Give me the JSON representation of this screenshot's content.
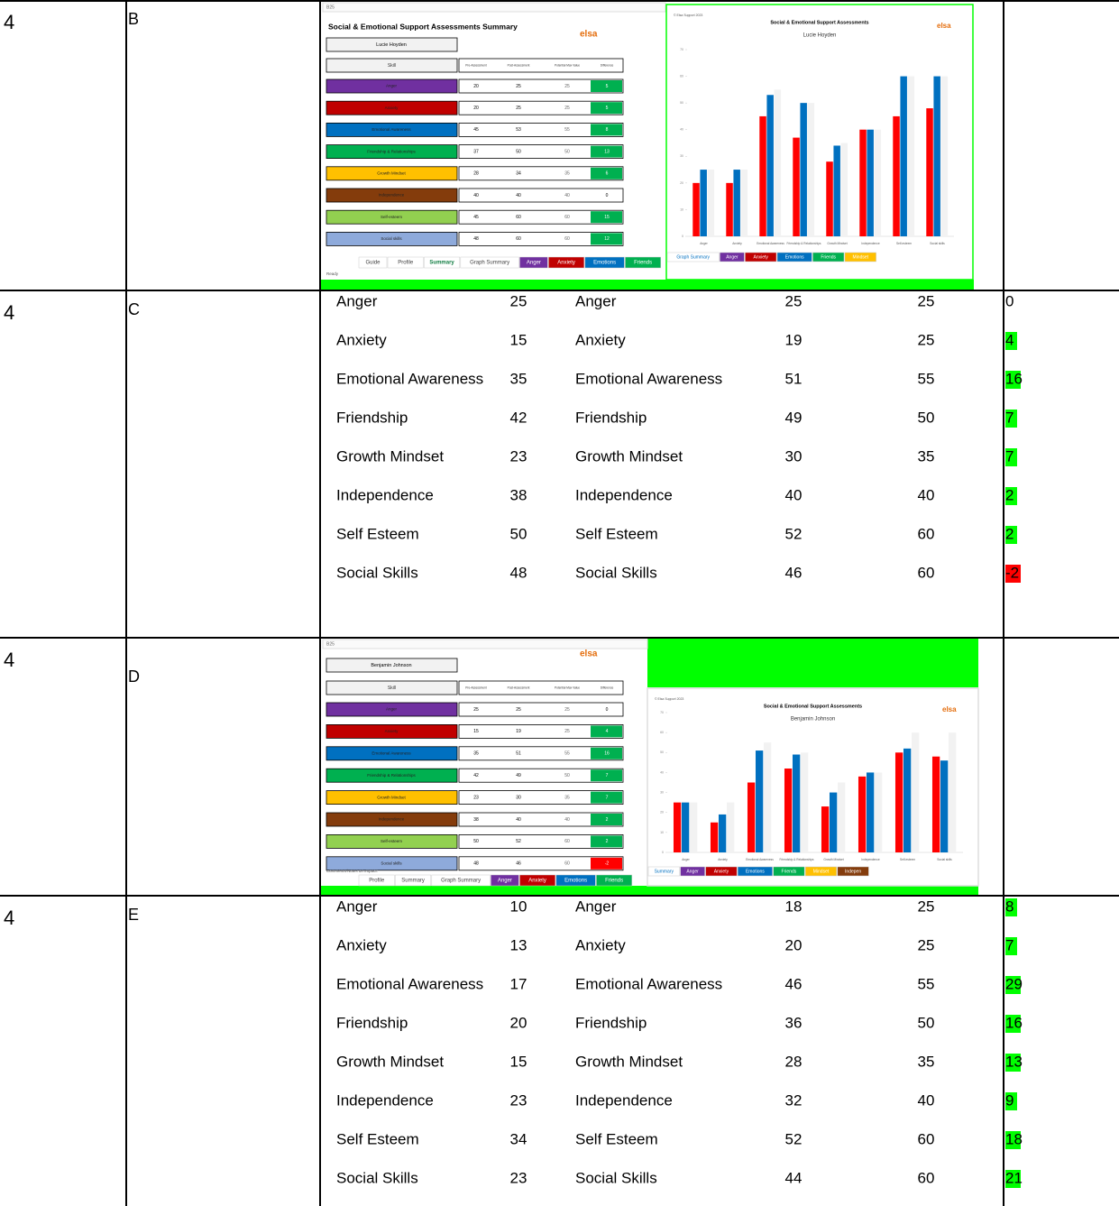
{
  "rows": [
    {
      "number": "4",
      "label": "B",
      "screenshot": {
        "cell_ref": "B25",
        "title": "Social & Emotional Support Assessments Summary",
        "logo": "elsa",
        "student": "Lucie Hoyden",
        "headers": [
          "Skill",
          "Pre-Assessment",
          "Post-Assessment",
          "Potential Max Value",
          "Difference"
        ],
        "skills": [
          "Anger",
          "Anxiety",
          "Emotional Awareness",
          "Friendship & Relationships",
          "Growth Mindset",
          "Independence",
          "Self-esteem",
          "Social skills"
        ],
        "skill_colors": [
          "#7030a0",
          "#c00000",
          "#0070c0",
          "#00b050",
          "#ffc000",
          "#843c0c",
          "#92d050",
          "#8eaadb"
        ],
        "pre": [
          20,
          20,
          45,
          37,
          28,
          40,
          45,
          48
        ],
        "post": [
          25,
          25,
          53,
          50,
          34,
          40,
          60,
          60
        ],
        "max": [
          25,
          25,
          55,
          50,
          35,
          40,
          60,
          60
        ],
        "diff": [
          5,
          5,
          8,
          13,
          6,
          0,
          15,
          12
        ],
        "tabs": [
          "Guide",
          "Profile",
          "Summary",
          "Graph Summary",
          "Anger",
          "Anxiety",
          "Emotions",
          "Friends"
        ],
        "tab_colors": [
          null,
          null,
          null,
          null,
          "#7030a0",
          "#c00000",
          "#0070c0",
          "#00b050"
        ],
        "status": "Ready",
        "chart": {
          "type": "bar",
          "copyright": "© Elsa Support 2023",
          "title": "Social & Emotional Support Assessments",
          "subtitle": "Lucie Hoyden",
          "logo": "elsa",
          "categories": [
            "Anger",
            "Anxiety",
            "Emotional Awareness",
            "Friendship & Relationships",
            "Growth Mindset",
            "Independence",
            "Self-esteem",
            "Social skills"
          ],
          "series": [
            {
              "color": "#ff0000",
              "values": [
                20,
                20,
                45,
                37,
                28,
                40,
                45,
                48
              ]
            },
            {
              "color": "#0070c0",
              "values": [
                25,
                25,
                53,
                50,
                34,
                40,
                60,
                60
              ]
            },
            {
              "color": "#f2f2f2",
              "values": [
                25,
                25,
                55,
                50,
                35,
                40,
                60,
                60
              ]
            }
          ],
          "ylim": [
            0,
            70
          ],
          "yticks": [
            0,
            10,
            20,
            30,
            40,
            50,
            60,
            70
          ],
          "tabs": [
            "Graph Summary",
            "Anger",
            "Anxiety",
            "Emotions",
            "Friends",
            "Mindset"
          ],
          "tab_colors": [
            null,
            "#7030a0",
            "#c00000",
            "#0070c0",
            "#00b050",
            "#ffc000"
          ]
        }
      }
    },
    {
      "number": "4",
      "label": "C",
      "scores": [
        [
          "Anger",
          25,
          "Anger",
          25,
          25,
          0
        ],
        [
          "Anxiety",
          15,
          "Anxiety",
          19,
          25,
          4
        ],
        [
          "Emotional Awareness",
          35,
          "Emotional Awareness",
          51,
          55,
          16
        ],
        [
          "Friendship",
          42,
          "Friendship",
          49,
          50,
          7
        ],
        [
          "Growth Mindset",
          23,
          "Growth Mindset",
          30,
          35,
          7
        ],
        [
          "Independence",
          38,
          "Independence",
          40,
          40,
          2
        ],
        [
          "Self Esteem",
          50,
          "Self Esteem",
          52,
          60,
          2
        ],
        [
          "Social Skills",
          48,
          "Social Skills",
          46,
          60,
          -2
        ]
      ]
    },
    {
      "number": "4",
      "label": "D",
      "screenshot": {
        "cell_ref": "B25",
        "logo": "elsa",
        "student": "Benjamin Johnson",
        "headers": [
          "Skill",
          "Pre-Assessment",
          "Post-Assessment",
          "Potential Max Value",
          "Difference"
        ],
        "skills": [
          "Anger",
          "Anxiety",
          "Emotional Awareness",
          "Friendship & Relationships",
          "Growth Mindset",
          "Independence",
          "Self-esteem",
          "Social skills"
        ],
        "skill_colors": [
          "#7030a0",
          "#c00000",
          "#0070c0",
          "#00b050",
          "#ffc000",
          "#843c0c",
          "#92d050",
          "#8eaadb"
        ],
        "pre": [
          25,
          15,
          35,
          42,
          23,
          38,
          50,
          48
        ],
        "post": [
          25,
          19,
          51,
          49,
          30,
          40,
          52,
          46
        ],
        "max": [
          25,
          25,
          55,
          50,
          35,
          40,
          60,
          60
        ],
        "diff": [
          0,
          4,
          16,
          7,
          7,
          2,
          2,
          -2
        ],
        "tabs": [
          "Profile",
          "Summary",
          "Graph Summary",
          "Anger",
          "Anxiety",
          "Emotions",
          "Friends"
        ],
        "tab_colors": [
          null,
          null,
          null,
          "#7030a0",
          "#c00000",
          "#0070c0",
          "#00b050"
        ],
        "status": "Comments/Notes on Impact:",
        "chart": {
          "type": "bar",
          "copyright": "© Elsa Support 2023",
          "title": "Social & Emotional Support Assessments",
          "subtitle": "Benjamin Johnson",
          "logo": "elsa",
          "categories": [
            "Anger",
            "Anxiety",
            "Emotional Awareness",
            "Friendship & Relationships",
            "Growth Mindset",
            "Independence",
            "Self-esteem",
            "Social skills"
          ],
          "series": [
            {
              "color": "#ff0000",
              "values": [
                25,
                15,
                35,
                42,
                23,
                38,
                50,
                48
              ]
            },
            {
              "color": "#0070c0",
              "values": [
                25,
                19,
                51,
                49,
                30,
                40,
                52,
                46
              ]
            },
            {
              "color": "#f2f2f2",
              "values": [
                25,
                25,
                55,
                50,
                35,
                40,
                60,
                60
              ]
            }
          ],
          "ylim": [
            0,
            70
          ],
          "yticks": [
            0,
            10,
            20,
            30,
            40,
            50,
            60,
            70
          ],
          "tabs": [
            "Summary",
            "Anger",
            "Anxiety",
            "Emotions",
            "Friends",
            "Mindset",
            "Indepen"
          ],
          "tab_colors": [
            null,
            "#7030a0",
            "#c00000",
            "#0070c0",
            "#00b050",
            "#ffc000",
            "#843c0c"
          ]
        }
      }
    },
    {
      "number": "4",
      "label": "E",
      "scores": [
        [
          "Anger",
          10,
          "Anger",
          18,
          25,
          8
        ],
        [
          "Anxiety",
          13,
          "Anxiety",
          20,
          25,
          7
        ],
        [
          "Emotional Awareness",
          17,
          "Emotional Awareness",
          46,
          55,
          29
        ],
        [
          "Friendship",
          20,
          "Friendship",
          36,
          50,
          16
        ],
        [
          "Growth Mindset",
          15,
          "Growth Mindset",
          28,
          35,
          13
        ],
        [
          "Independence",
          23,
          "Independence",
          32,
          40,
          9
        ],
        [
          "Self Esteem",
          34,
          "Self Esteem",
          52,
          60,
          18
        ],
        [
          "Social Skills",
          23,
          "Social Skills",
          44,
          60,
          21
        ]
      ]
    }
  ]
}
